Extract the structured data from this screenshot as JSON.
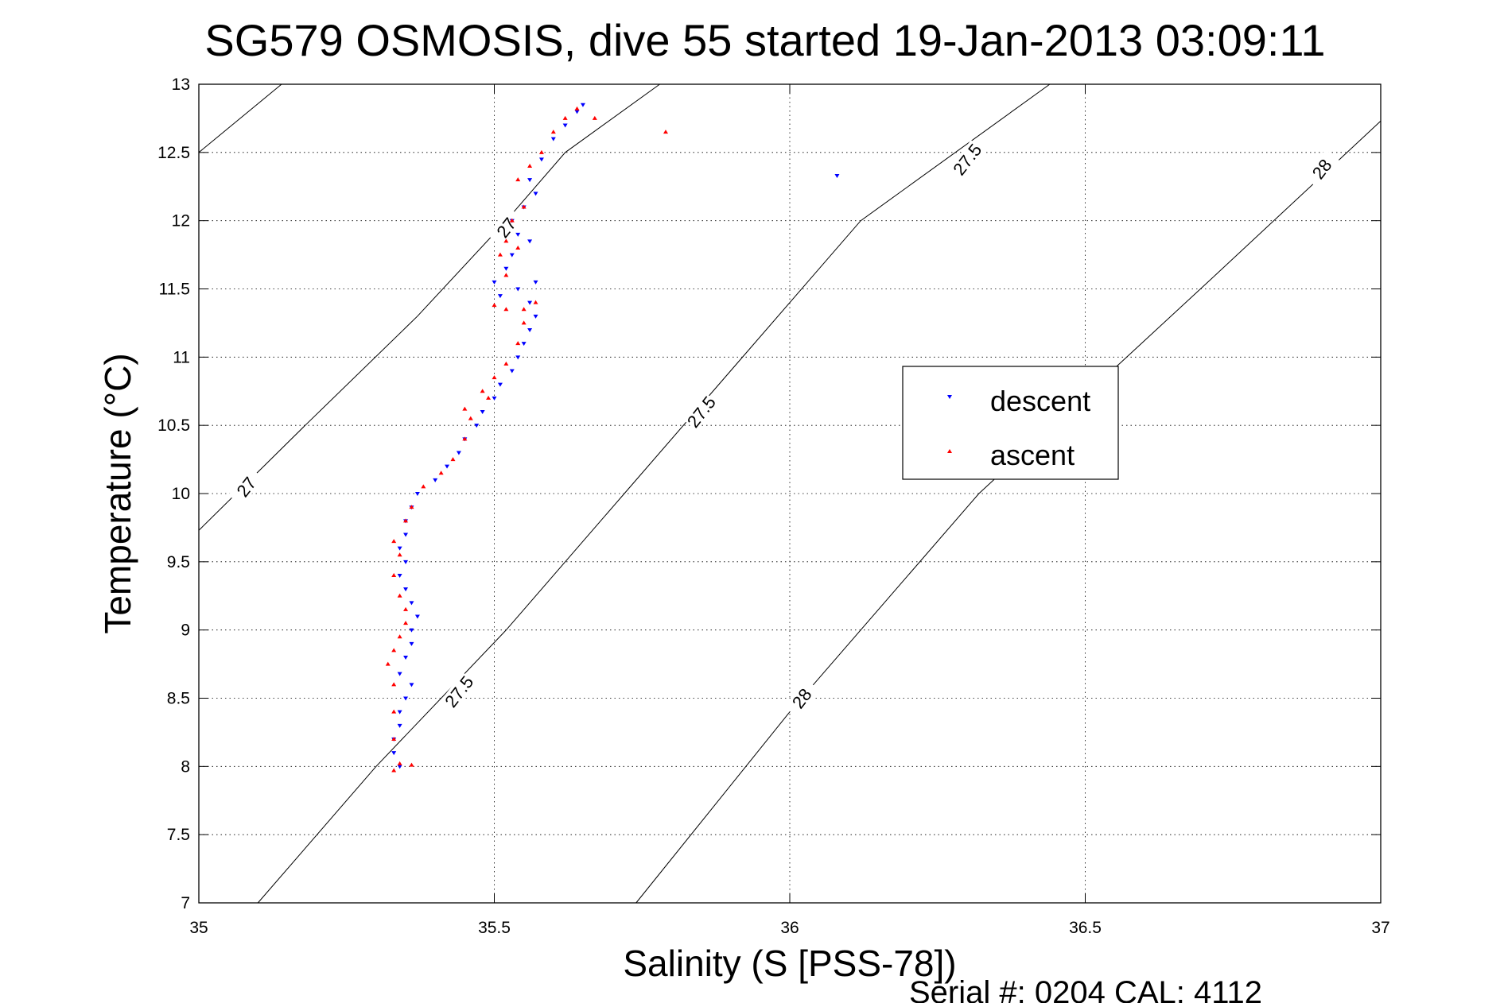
{
  "chart_data": {
    "type": "scatter",
    "title": "SG579 OSMOSIS, dive 55 started 19-Jan-2013 03:09:11",
    "xlabel": "Salinity (S [PSS-78])",
    "ylabel": "Temperature (°C)",
    "xlim": [
      35,
      37
    ],
    "ylim": [
      7,
      13
    ],
    "x_ticks": [
      35,
      35.5,
      36,
      36.5,
      37
    ],
    "x_tick_labels": [
      "35",
      "35.5",
      "36",
      "36.5",
      "37"
    ],
    "y_ticks": [
      7,
      7.5,
      8,
      8.5,
      9,
      9.5,
      10,
      10.5,
      11,
      11.5,
      12,
      12.5,
      13
    ],
    "y_tick_labels": [
      "7",
      "7.5",
      "8",
      "8.5",
      "9",
      "9.5",
      "10",
      "10.5",
      "11",
      "11.5",
      "12",
      "12.5",
      "13"
    ],
    "grid": true,
    "legend_position": "center-right",
    "footer": "Serial #: 0204  CAL: 4112",
    "density_contours": [
      {
        "label": "27",
        "points": [
          [
            35.0,
            12.5
          ],
          [
            35.14,
            13.0
          ]
        ],
        "labels_at": []
      },
      {
        "label": "27",
        "points": [
          [
            35.0,
            9.73
          ],
          [
            35.18,
            10.5
          ],
          [
            35.37,
            11.3
          ],
          [
            35.52,
            12.0
          ],
          [
            35.62,
            12.5
          ],
          [
            35.78,
            13.0
          ]
        ],
        "labels_at": [
          [
            35.08,
            10.05
          ],
          [
            35.52,
            11.95
          ]
        ]
      },
      {
        "label": "27.5",
        "points": [
          [
            35.1,
            7.0
          ],
          [
            35.3,
            8.0
          ],
          [
            35.52,
            9.0
          ],
          [
            35.72,
            10.0
          ],
          [
            35.9,
            10.9
          ],
          [
            36.12,
            12.0
          ],
          [
            36.44,
            13.0
          ]
        ],
        "labels_at": [
          [
            35.44,
            8.55
          ],
          [
            35.85,
            10.6
          ],
          [
            36.3,
            12.45
          ]
        ]
      },
      {
        "label": "28",
        "points": [
          [
            35.74,
            7.0
          ],
          [
            36.0,
            8.4
          ],
          [
            36.32,
            10.0
          ],
          [
            36.72,
            11.6
          ],
          [
            37.0,
            12.73
          ]
        ],
        "labels_at": [
          [
            36.02,
            8.5
          ],
          [
            36.9,
            12.38
          ]
        ]
      }
    ],
    "series": [
      {
        "name": "descent",
        "color": "#0000ff",
        "marker": "triangle-down",
        "points": [
          [
            35.34,
            8.0
          ],
          [
            35.33,
            8.1
          ],
          [
            35.33,
            8.2
          ],
          [
            35.34,
            8.3
          ],
          [
            35.34,
            8.4
          ],
          [
            35.35,
            8.5
          ],
          [
            35.36,
            8.6
          ],
          [
            35.34,
            8.68
          ],
          [
            35.35,
            8.8
          ],
          [
            35.36,
            8.9
          ],
          [
            35.36,
            9.0
          ],
          [
            35.37,
            9.1
          ],
          [
            35.36,
            9.2
          ],
          [
            35.35,
            9.3
          ],
          [
            35.34,
            9.4
          ],
          [
            35.35,
            9.5
          ],
          [
            35.34,
            9.6
          ],
          [
            35.35,
            9.7
          ],
          [
            35.35,
            9.8
          ],
          [
            35.36,
            9.9
          ],
          [
            35.37,
            10.0
          ],
          [
            35.4,
            10.1
          ],
          [
            35.42,
            10.2
          ],
          [
            35.44,
            10.3
          ],
          [
            35.45,
            10.4
          ],
          [
            35.47,
            10.5
          ],
          [
            35.48,
            10.6
          ],
          [
            35.5,
            10.7
          ],
          [
            35.51,
            10.8
          ],
          [
            35.53,
            10.9
          ],
          [
            35.54,
            11.0
          ],
          [
            35.55,
            11.1
          ],
          [
            35.56,
            11.2
          ],
          [
            35.57,
            11.3
          ],
          [
            35.56,
            11.4
          ],
          [
            35.57,
            11.55
          ],
          [
            35.54,
            11.5
          ],
          [
            35.51,
            11.45
          ],
          [
            35.5,
            11.55
          ],
          [
            35.52,
            11.65
          ],
          [
            35.53,
            11.75
          ],
          [
            35.56,
            11.85
          ],
          [
            35.54,
            11.9
          ],
          [
            35.53,
            12.0
          ],
          [
            35.55,
            12.1
          ],
          [
            35.57,
            12.2
          ],
          [
            35.56,
            12.3
          ],
          [
            35.58,
            12.45
          ],
          [
            35.6,
            12.6
          ],
          [
            35.62,
            12.7
          ],
          [
            35.64,
            12.8
          ],
          [
            35.65,
            12.85
          ],
          [
            36.08,
            12.33
          ]
        ]
      },
      {
        "name": "ascent",
        "color": "#ff0000",
        "marker": "triangle-up",
        "points": [
          [
            35.33,
            7.97
          ],
          [
            35.34,
            8.02
          ],
          [
            35.36,
            8.01
          ],
          [
            35.33,
            8.2
          ],
          [
            35.33,
            8.4
          ],
          [
            35.33,
            8.6
          ],
          [
            35.32,
            8.75
          ],
          [
            35.33,
            8.85
          ],
          [
            35.34,
            8.95
          ],
          [
            35.35,
            9.05
          ],
          [
            35.35,
            9.15
          ],
          [
            35.34,
            9.25
          ],
          [
            35.33,
            9.4
          ],
          [
            35.34,
            9.55
          ],
          [
            35.33,
            9.65
          ],
          [
            35.35,
            9.8
          ],
          [
            35.36,
            9.9
          ],
          [
            35.38,
            10.05
          ],
          [
            35.41,
            10.15
          ],
          [
            35.43,
            10.25
          ],
          [
            35.45,
            10.4
          ],
          [
            35.46,
            10.55
          ],
          [
            35.49,
            10.7
          ],
          [
            35.5,
            10.85
          ],
          [
            35.52,
            10.95
          ],
          [
            35.54,
            11.1
          ],
          [
            35.55,
            11.25
          ],
          [
            35.57,
            11.4
          ],
          [
            35.55,
            11.35
          ],
          [
            35.52,
            11.35
          ],
          [
            35.5,
            11.38
          ],
          [
            35.52,
            11.6
          ],
          [
            35.51,
            11.75
          ],
          [
            35.52,
            11.85
          ],
          [
            35.54,
            11.8
          ],
          [
            35.53,
            12.0
          ],
          [
            35.55,
            12.1
          ],
          [
            35.54,
            12.3
          ],
          [
            35.56,
            12.4
          ],
          [
            35.58,
            12.5
          ],
          [
            35.6,
            12.65
          ],
          [
            35.62,
            12.75
          ],
          [
            35.64,
            12.82
          ],
          [
            35.67,
            12.75
          ],
          [
            35.79,
            12.65
          ],
          [
            35.48,
            10.75
          ],
          [
            35.45,
            10.62
          ]
        ]
      }
    ]
  }
}
